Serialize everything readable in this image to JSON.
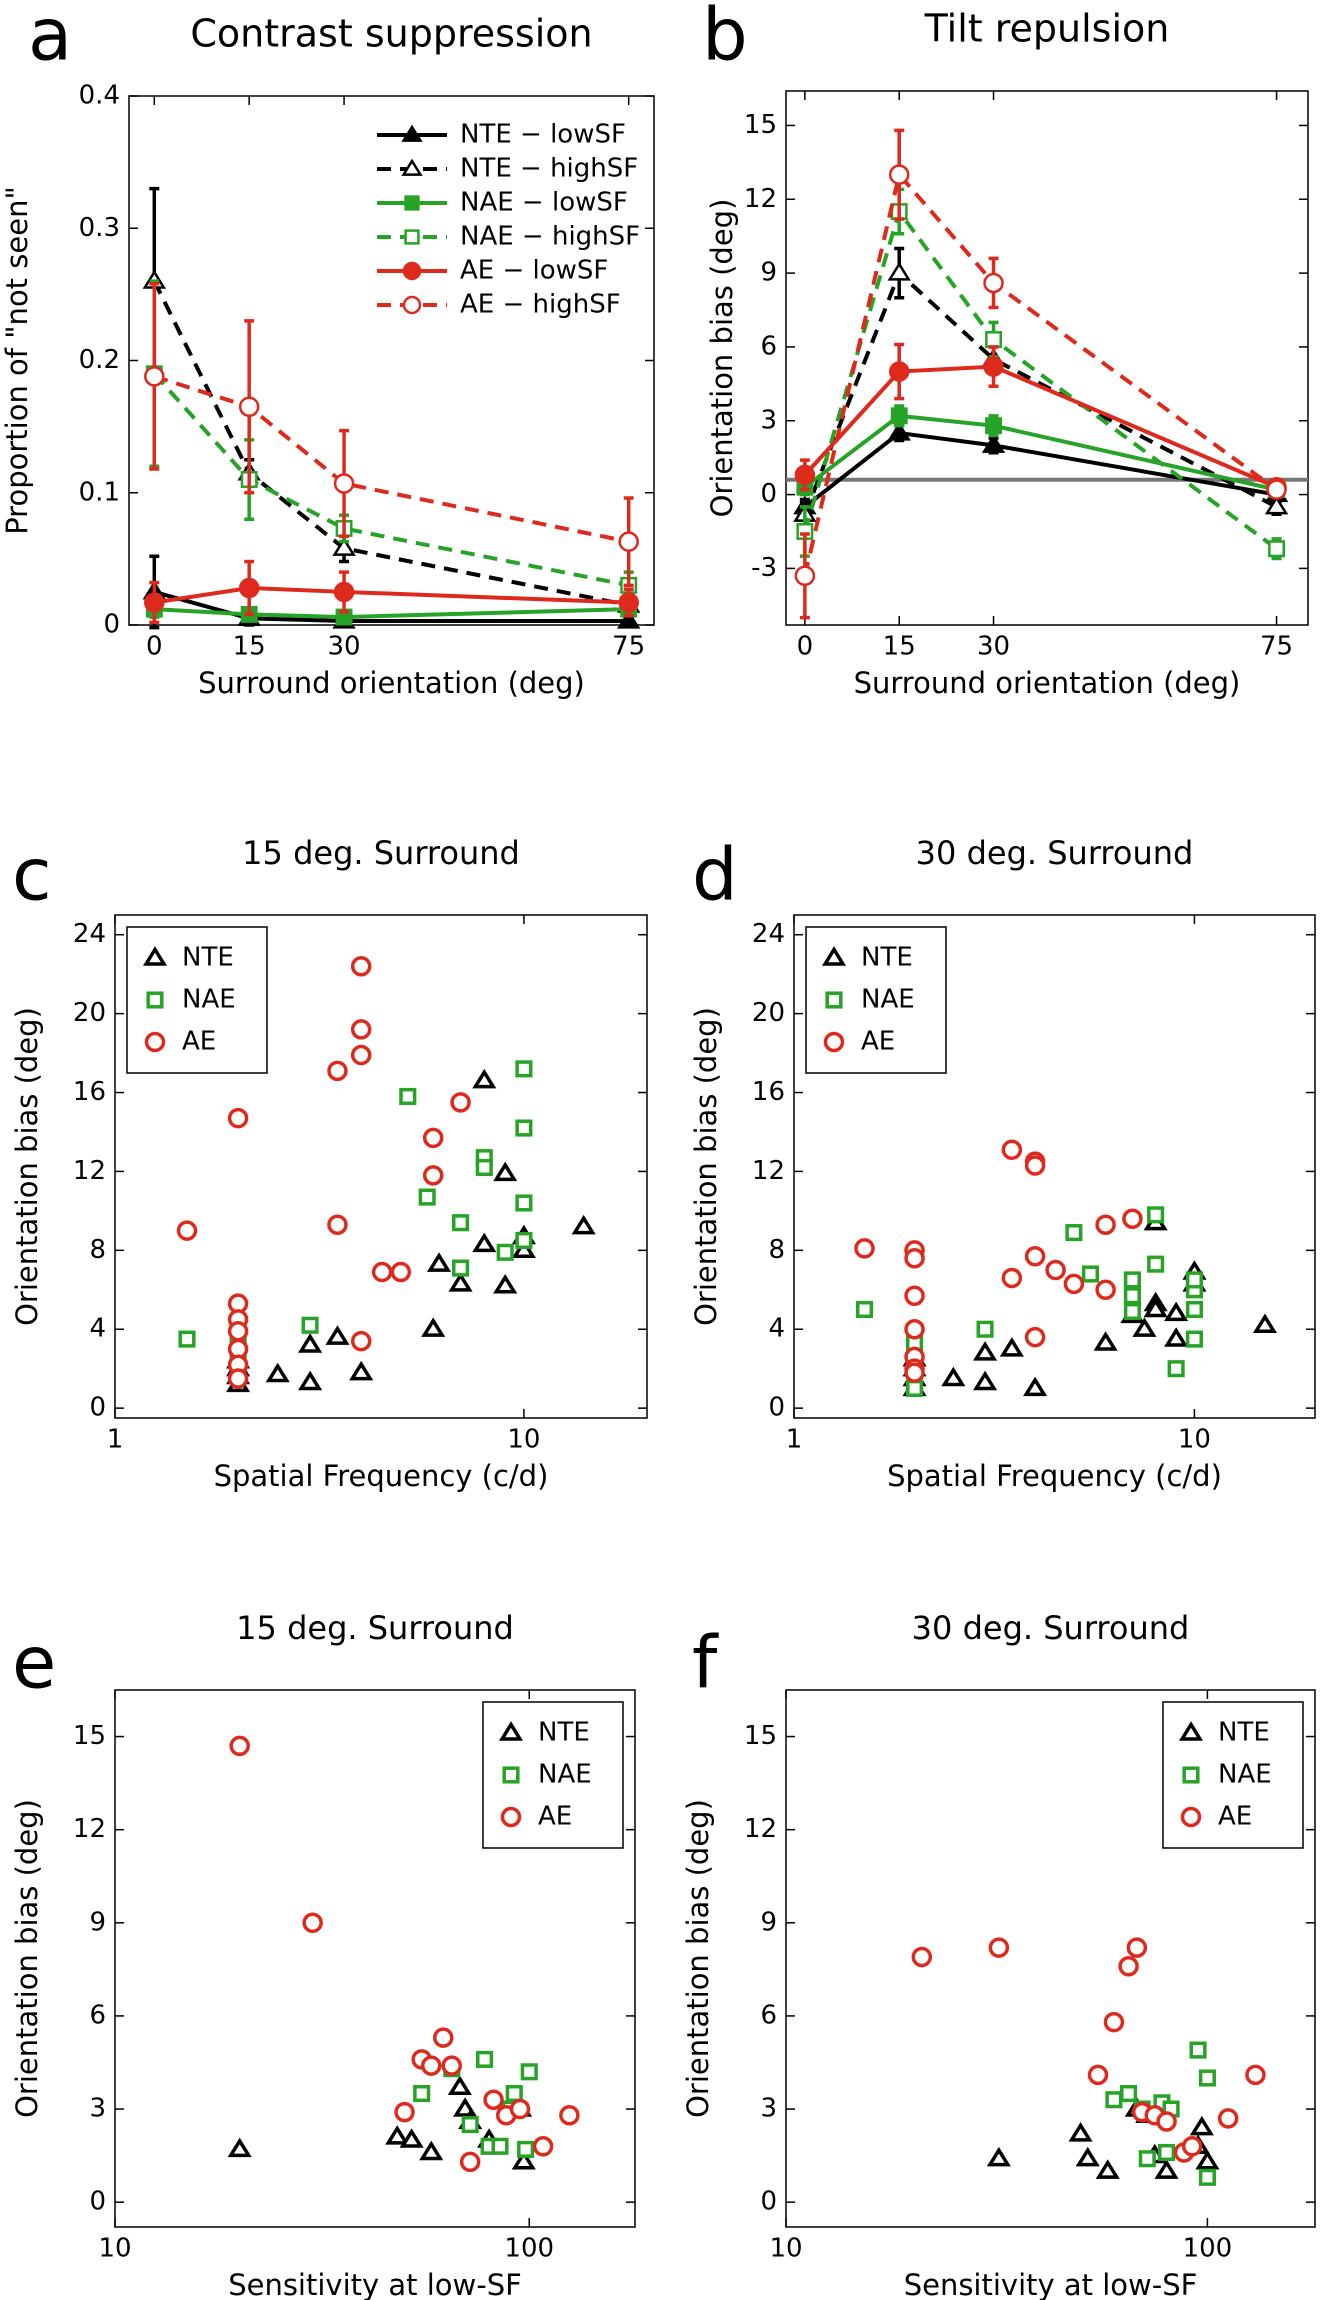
{
  "chart_data": [
    {
      "type": "line",
      "panel": "a",
      "title": "Contrast suppression",
      "xlabel": "Surround orientation (deg)",
      "ylabel": "Proportion of \"not seen\"",
      "x": [
        0,
        15,
        30,
        75
      ],
      "xlim": [
        -4,
        79
      ],
      "xticks": [
        0,
        15,
        30,
        75
      ],
      "ylim": [
        0,
        0.4
      ],
      "yticks": [
        0,
        0.1,
        0.2,
        0.3,
        0.4
      ],
      "legend": "upper right",
      "legend_frame": false,
      "series": [
        {
          "name": "NTE − lowSF",
          "color": "#000000",
          "dash": false,
          "marker": "triangle",
          "filled": true,
          "values": [
            0.025,
            0.005,
            0.003,
            0.003
          ],
          "errors": [
            0.027,
            0.005,
            0.003,
            0.003
          ]
        },
        {
          "name": "NTE − highSF",
          "color": "#000000",
          "dash": true,
          "marker": "triangle",
          "filled": false,
          "values": [
            0.26,
            0.115,
            0.058,
            0.015
          ],
          "errors": [
            0.07,
            0.01,
            0.01,
            0.005
          ]
        },
        {
          "name": "NAE − lowSF",
          "color": "#27a327",
          "dash": false,
          "marker": "square",
          "filled": true,
          "values": [
            0.012,
            0.008,
            0.006,
            0.012
          ],
          "errors": [
            0.006,
            0.004,
            0.003,
            0.005
          ]
        },
        {
          "name": "NAE − highSF",
          "color": "#27a327",
          "dash": true,
          "marker": "square",
          "filled": false,
          "values": [
            0.19,
            0.11,
            0.073,
            0.03
          ],
          "errors": [
            0.07,
            0.03,
            0.01,
            0.01
          ]
        },
        {
          "name": "AE − lowSF",
          "color": "#dd2a1c",
          "dash": false,
          "marker": "circle",
          "filled": true,
          "values": [
            0.017,
            0.028,
            0.025,
            0.017
          ],
          "errors": [
            0.015,
            0.02,
            0.015,
            0.01
          ]
        },
        {
          "name": "AE − highSF",
          "color": "#dd2a1c",
          "dash": true,
          "marker": "circle",
          "filled": false,
          "values": [
            0.188,
            0.165,
            0.107,
            0.063
          ],
          "errors": [
            0.07,
            0.065,
            0.04,
            0.033
          ]
        }
      ]
    },
    {
      "type": "line",
      "panel": "b",
      "title": "Tilt repulsion",
      "xlabel": "Surround orientation (deg)",
      "ylabel": "Orientation bias (deg)",
      "x": [
        0,
        15,
        30,
        75
      ],
      "xlim": [
        -3,
        80
      ],
      "xticks": [
        0,
        15,
        30,
        75
      ],
      "ylim": [
        -5.3,
        16.4
      ],
      "yticks": [
        -3,
        0,
        3,
        6,
        9,
        12,
        15
      ],
      "hline": 0.6,
      "series": [
        {
          "color": "#000000",
          "dash": false,
          "marker": "triangle",
          "filled": true,
          "values": [
            -0.5,
            2.5,
            2.0,
            0.0
          ],
          "errors": [
            0.3,
            0.3,
            0.3,
            0.3
          ]
        },
        {
          "color": "#000000",
          "dash": true,
          "marker": "triangle",
          "filled": false,
          "values": [
            -0.8,
            9.0,
            5.5,
            -0.5
          ],
          "errors": [
            0.5,
            1.0,
            0.5,
            0.3
          ]
        },
        {
          "color": "#27a327",
          "dash": false,
          "marker": "square",
          "filled": true,
          "values": [
            0.3,
            3.2,
            2.8,
            0.2
          ],
          "errors": [
            0.3,
            0.4,
            0.4,
            0.3
          ]
        },
        {
          "color": "#27a327",
          "dash": true,
          "marker": "square",
          "filled": false,
          "values": [
            -1.5,
            11.5,
            6.3,
            -2.2
          ],
          "errors": [
            1.0,
            0.9,
            0.7,
            0.4
          ]
        },
        {
          "color": "#dd2a1c",
          "dash": false,
          "marker": "circle",
          "filled": true,
          "values": [
            0.8,
            5.0,
            5.2,
            0.3
          ],
          "errors": [
            0.6,
            1.1,
            0.8,
            0.3
          ]
        },
        {
          "color": "#dd2a1c",
          "dash": true,
          "marker": "circle",
          "filled": false,
          "values": [
            -3.3,
            13.0,
            8.6,
            0.2
          ],
          "errors": [
            1.7,
            1.8,
            1.0,
            0.3
          ]
        }
      ]
    },
    {
      "type": "scatter",
      "panel": "c",
      "title": "15 deg. Surround",
      "xlabel": "Spatial Frequency (c/d)",
      "ylabel": "Orientation bias (deg)",
      "xscale": "log",
      "xlim": [
        1,
        20
      ],
      "xticks": [
        1,
        10
      ],
      "ylim": [
        -0.5,
        25
      ],
      "yticks": [
        0,
        4,
        8,
        12,
        16,
        20,
        24
      ],
      "legend": "upper left",
      "legend_frame": true,
      "series": [
        {
          "name": "NTE",
          "color": "#000000",
          "marker": "triangle",
          "x": [
            2,
            2,
            2,
            2,
            2.5,
            3,
            3,
            3.5,
            4,
            6,
            6.2,
            7,
            8,
            8,
            9,
            9,
            10,
            10,
            14
          ],
          "values": [
            1.2,
            1.6,
            2.0,
            2.4,
            1.7,
            1.3,
            3.2,
            3.6,
            1.8,
            4.0,
            7.3,
            6.3,
            16.6,
            8.3,
            11.9,
            6.2,
            8.0,
            8.7,
            9.2
          ]
        },
        {
          "name": "NAE",
          "color": "#27a327",
          "marker": "square",
          "x": [
            1.5,
            2,
            2,
            2,
            3,
            5.2,
            5.8,
            7,
            7,
            8,
            8,
            9,
            10,
            10,
            10,
            10
          ],
          "values": [
            3.5,
            3.5,
            4.0,
            2.5,
            4.2,
            15.8,
            10.7,
            9.4,
            7.1,
            12.7,
            12.2,
            7.9,
            17.2,
            14.2,
            10.4,
            8.5
          ]
        },
        {
          "name": "AE",
          "color": "#dd2a1c",
          "marker": "circle",
          "x": [
            1.5,
            2,
            2,
            2,
            2,
            2,
            2,
            2,
            3.5,
            3.5,
            4,
            4,
            4,
            4,
            4.5,
            5,
            6,
            6,
            7
          ],
          "values": [
            9.0,
            14.7,
            5.3,
            4.5,
            3.9,
            3.0,
            2.2,
            1.5,
            17.1,
            9.3,
            22.4,
            19.2,
            17.9,
            3.4,
            6.9,
            6.9,
            13.7,
            11.8,
            15.5
          ]
        }
      ]
    },
    {
      "type": "scatter",
      "panel": "d",
      "title": "30 deg. Surround",
      "xlabel": "Spatial Frequency (c/d)",
      "ylabel": "Orientation bias (deg)",
      "xscale": "log",
      "xlim": [
        1,
        20
      ],
      "xticks": [
        1,
        10
      ],
      "ylim": [
        -0.5,
        25
      ],
      "yticks": [
        0,
        4,
        8,
        12,
        16,
        20,
        24
      ],
      "legend": "upper left",
      "legend_frame": true,
      "series": [
        {
          "name": "NTE",
          "color": "#000000",
          "marker": "triangle",
          "x": [
            2,
            2,
            2,
            2,
            2.5,
            3,
            3,
            3.5,
            4,
            6,
            7,
            7.5,
            8,
            8,
            8,
            9,
            9,
            10,
            10,
            15
          ],
          "values": [
            1.0,
            1.5,
            2.0,
            2.5,
            1.5,
            1.3,
            2.8,
            3.0,
            1.0,
            3.3,
            4.7,
            4.0,
            5.3,
            5.0,
            9.4,
            4.8,
            3.5,
            6.9,
            6.3,
            4.2
          ]
        },
        {
          "name": "NAE",
          "color": "#27a327",
          "marker": "square",
          "x": [
            1.5,
            2,
            2,
            2,
            3,
            5,
            5.5,
            7,
            7,
            7,
            8,
            8,
            9,
            10,
            10,
            10,
            10
          ],
          "values": [
            5.0,
            1.0,
            2.0,
            3.3,
            4.0,
            8.9,
            6.8,
            6.5,
            5.7,
            4.9,
            9.8,
            7.3,
            2.0,
            3.5,
            5.0,
            6.0,
            6.5
          ]
        },
        {
          "name": "AE",
          "color": "#dd2a1c",
          "marker": "circle",
          "x": [
            1.5,
            2,
            2,
            2,
            2,
            2,
            2,
            2,
            3.5,
            3.5,
            4,
            4,
            4,
            4,
            4.5,
            5,
            6,
            6,
            7
          ],
          "values": [
            8.1,
            8.0,
            7.6,
            5.7,
            4.0,
            2.6,
            2.0,
            1.8,
            13.1,
            6.6,
            12.5,
            12.3,
            7.7,
            3.6,
            7.0,
            6.3,
            9.3,
            6.0,
            9.6
          ]
        }
      ]
    },
    {
      "type": "scatter",
      "panel": "e",
      "title": "15 deg. Surround",
      "xlabel": "Sensitivity at low-SF",
      "ylabel": "Orientation bias (deg)",
      "xscale": "log",
      "xlim": [
        10,
        180
      ],
      "xticks": [
        10,
        100
      ],
      "ylim": [
        -0.8,
        16.5
      ],
      "yticks": [
        0,
        3,
        6,
        9,
        12,
        15
      ],
      "legend": "upper right",
      "legend_frame": true,
      "series": [
        {
          "name": "NTE",
          "color": "#000000",
          "marker": "triangle",
          "x": [
            20,
            48,
            52,
            58,
            68,
            70,
            72,
            80,
            95,
            97
          ],
          "values": [
            1.7,
            2.1,
            2.0,
            1.6,
            3.7,
            3.0,
            2.6,
            2.0,
            3.0,
            1.3
          ]
        },
        {
          "name": "NAE",
          "color": "#27a327",
          "marker": "square",
          "x": [
            55,
            65,
            72,
            78,
            80,
            85,
            90,
            92,
            98,
            100
          ],
          "values": [
            3.5,
            4.3,
            2.5,
            4.6,
            1.8,
            1.8,
            3.0,
            3.5,
            1.7,
            4.2
          ]
        },
        {
          "name": "AE",
          "color": "#dd2a1c",
          "marker": "circle",
          "x": [
            20,
            30,
            50,
            55,
            58,
            62,
            65,
            72,
            82,
            88,
            95,
            108,
            125
          ],
          "values": [
            14.7,
            9.0,
            2.9,
            4.6,
            4.4,
            5.3,
            4.4,
            1.3,
            3.3,
            2.8,
            3.0,
            1.8,
            2.8
          ]
        }
      ]
    },
    {
      "type": "scatter",
      "panel": "f",
      "title": "30 deg. Surround",
      "xlabel": "Sensitivity at low-SF",
      "ylabel": "Orientation bias (deg)",
      "xscale": "log",
      "xlim": [
        10,
        180
      ],
      "xticks": [
        10,
        100
      ],
      "ylim": [
        -0.8,
        16.5
      ],
      "yticks": [
        0,
        3,
        6,
        9,
        12,
        15
      ],
      "legend": "upper right",
      "legend_frame": true,
      "series": [
        {
          "name": "NTE",
          "color": "#000000",
          "marker": "triangle",
          "x": [
            32,
            50,
            52,
            58,
            68,
            72,
            75,
            80,
            95,
            97,
            100
          ],
          "values": [
            1.4,
            2.2,
            1.4,
            1.0,
            3.0,
            2.8,
            1.5,
            1.0,
            1.8,
            2.4,
            1.3
          ]
        },
        {
          "name": "NAE",
          "color": "#27a327",
          "marker": "square",
          "x": [
            60,
            65,
            70,
            72,
            78,
            80,
            82,
            95,
            100,
            100
          ],
          "values": [
            3.3,
            3.5,
            3.0,
            1.4,
            3.2,
            1.6,
            3.0,
            4.9,
            4.0,
            0.8
          ]
        },
        {
          "name": "AE",
          "color": "#dd2a1c",
          "marker": "circle",
          "x": [
            21,
            32,
            55,
            60,
            65,
            68,
            70,
            75,
            80,
            88,
            92,
            112,
            130
          ],
          "values": [
            7.9,
            8.2,
            4.1,
            5.8,
            7.6,
            8.2,
            2.9,
            2.8,
            2.6,
            1.6,
            1.8,
            2.7,
            4.1
          ]
        }
      ]
    }
  ]
}
